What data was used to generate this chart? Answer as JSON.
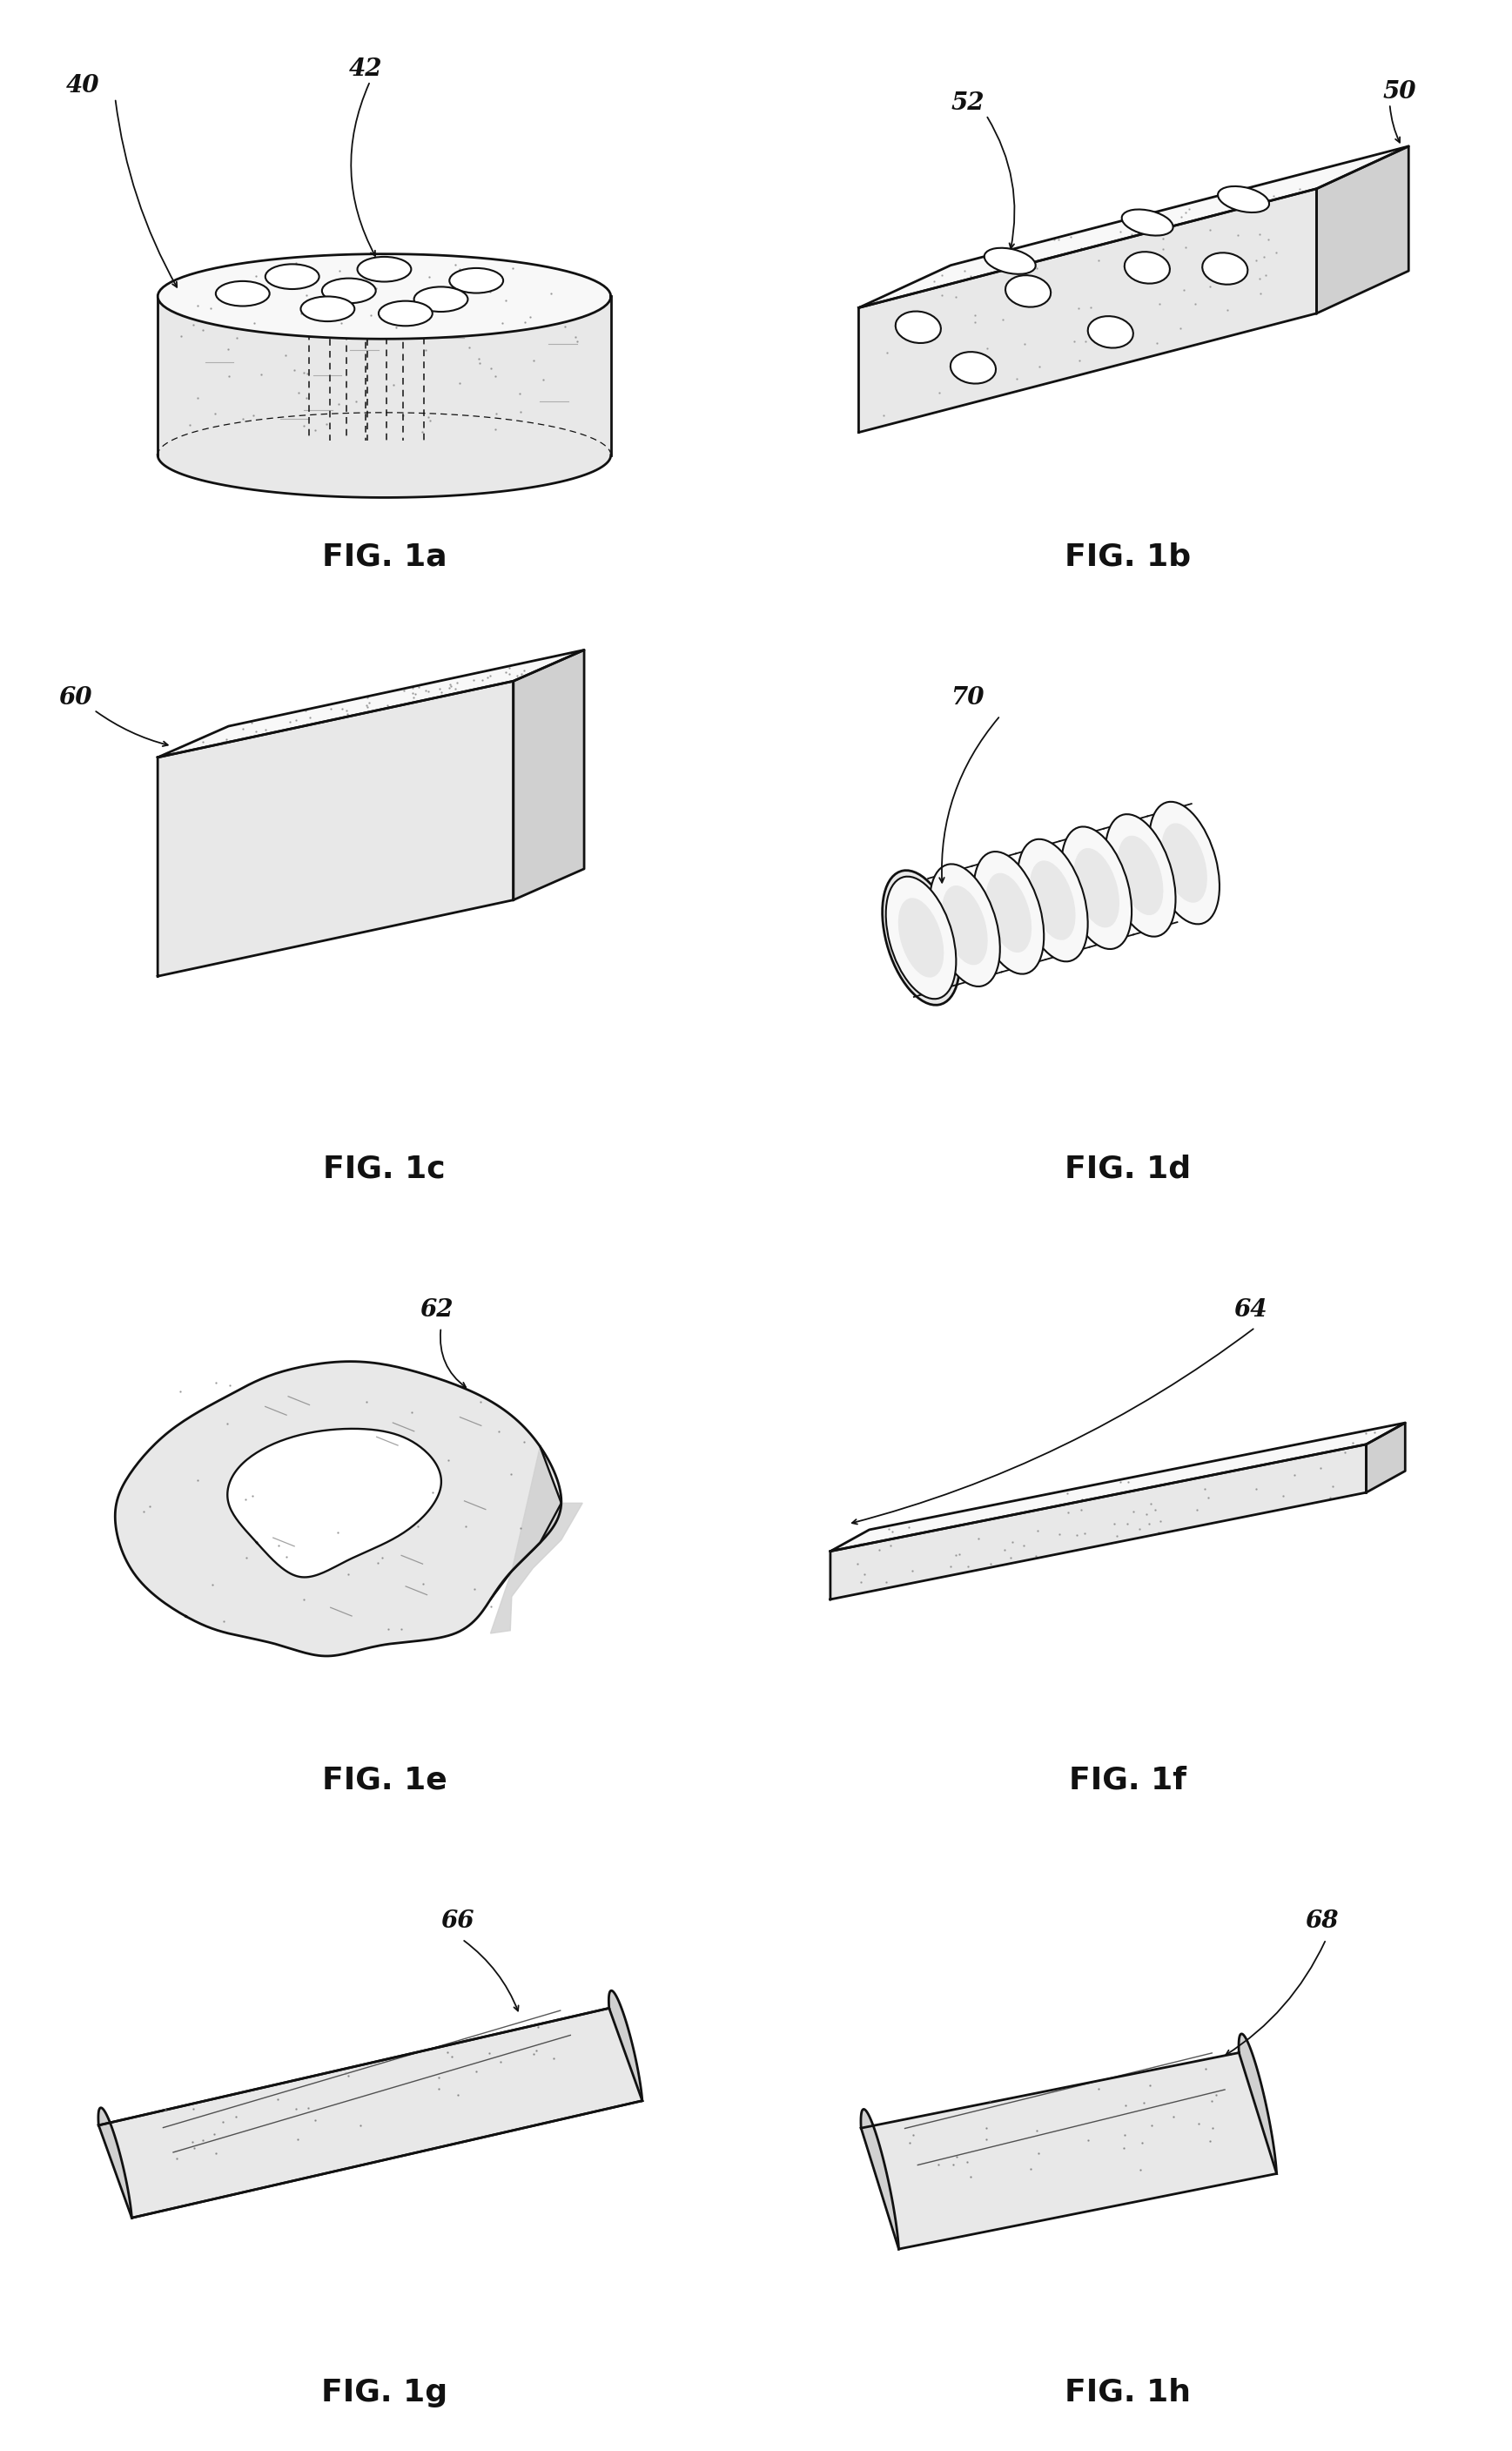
{
  "bg_color": "#ffffff",
  "line_color": "#111111",
  "fig_labels": [
    "FIG. 1a",
    "FIG. 1b",
    "FIG. 1c",
    "FIG. 1d",
    "FIG. 1e",
    "FIG. 1f",
    "FIG. 1g",
    "FIG. 1h"
  ],
  "label_fontsize": 26,
  "ref_fontsize": 20,
  "face_light": "#f8f8f8",
  "face_mid": "#e8e8e8",
  "face_dark": "#d0d0d0"
}
